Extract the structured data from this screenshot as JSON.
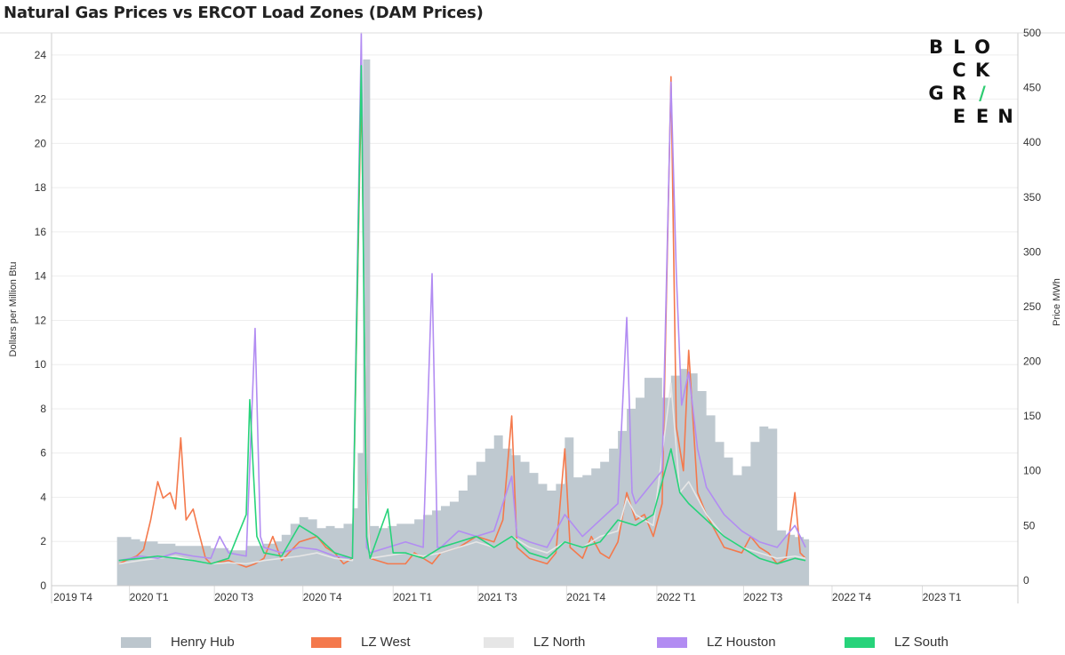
{
  "title": "Natural Gas Prices vs ERCOT Load Zones (DAM Prices)",
  "logo": {
    "rows": [
      [
        "B",
        "L",
        "O",
        ""
      ],
      [
        "",
        "C",
        "K",
        ""
      ],
      [
        "G",
        "R",
        "/",
        ""
      ],
      [
        "",
        "E",
        "E",
        "N"
      ]
    ],
    "accent": "#2ecc71"
  },
  "colors": {
    "henry_hub": "#bcc6cd",
    "lz_west": "#f4794c",
    "lz_north": "#e6e6e6",
    "lz_houston": "#b28cf2",
    "lz_south": "#27d37a"
  },
  "legend": [
    {
      "label": "Henry Hub",
      "color": "#bcc6cd"
    },
    {
      "label": "LZ West",
      "color": "#f4794c"
    },
    {
      "label": "LZ North",
      "color": "#e6e6e6"
    },
    {
      "label": "LZ Houston",
      "color": "#b28cf2"
    },
    {
      "label": "LZ South",
      "color": "#27d37a"
    }
  ],
  "chart_data": {
    "type": "area",
    "title": "Natural Gas Prices vs ERCOT Load Zones (DAM Prices)",
    "xlabel": "",
    "ylabel": "Dollars per Million Btu",
    "y2label": "Price MWh",
    "x_ticks": [
      "2019 T4",
      "2020 T1",
      "2020 T3",
      "2020 T4",
      "2021 T1",
      "2021 T3",
      "2021 T4",
      "2022 T1",
      "2022 T3",
      "2022 T4",
      "2023 T1"
    ],
    "y_ticks": [
      0,
      2,
      4,
      6,
      8,
      10,
      12,
      14,
      16,
      18,
      20,
      22,
      24
    ],
    "y2_ticks": [
      0,
      50,
      100,
      150,
      200,
      250,
      300,
      350,
      400,
      450,
      500
    ],
    "ylim": [
      0,
      25
    ],
    "y2lim": [
      -5,
      500
    ],
    "grid": true,
    "legend_position": "bottom",
    "x_unit": "months since 2019-10",
    "series": [
      {
        "name": "Henry Hub",
        "axis": "left",
        "style": "step-area",
        "points": [
          [
            1.7,
            2.2
          ],
          [
            2.5,
            2.1
          ],
          [
            3,
            2.0
          ],
          [
            4,
            1.9
          ],
          [
            5,
            1.8
          ],
          [
            6,
            1.8
          ],
          [
            7,
            1.7
          ],
          [
            8,
            1.6
          ],
          [
            9,
            1.8
          ],
          [
            10,
            1.9
          ],
          [
            10.6,
            2.0
          ],
          [
            11,
            2.3
          ],
          [
            11.5,
            2.8
          ],
          [
            12,
            3.1
          ],
          [
            12.5,
            3.0
          ],
          [
            13,
            2.6
          ],
          [
            13.5,
            2.7
          ],
          [
            14,
            2.6
          ],
          [
            14.5,
            2.8
          ],
          [
            15,
            3.5
          ],
          [
            15.3,
            6.0
          ],
          [
            15.6,
            23.8
          ],
          [
            16,
            2.7
          ],
          [
            16.5,
            2.6
          ],
          [
            17,
            2.7
          ],
          [
            17.5,
            2.8
          ],
          [
            18,
            2.8
          ],
          [
            18.5,
            3.0
          ],
          [
            19,
            3.2
          ],
          [
            19.5,
            3.4
          ],
          [
            20,
            3.6
          ],
          [
            20.5,
            3.8
          ],
          [
            21,
            4.3
          ],
          [
            21.5,
            5.0
          ],
          [
            22,
            5.6
          ],
          [
            22.5,
            6.2
          ],
          [
            23,
            6.8
          ],
          [
            23.5,
            6.2
          ],
          [
            24,
            5.9
          ],
          [
            24.5,
            5.6
          ],
          [
            25,
            5.1
          ],
          [
            25.5,
            4.6
          ],
          [
            26,
            4.3
          ],
          [
            26.5,
            4.6
          ],
          [
            27,
            6.7
          ],
          [
            27.5,
            4.9
          ],
          [
            28,
            5.0
          ],
          [
            28.5,
            5.3
          ],
          [
            29,
            5.6
          ],
          [
            29.5,
            6.2
          ],
          [
            30,
            7.0
          ],
          [
            30.5,
            8.0
          ],
          [
            31,
            8.5
          ],
          [
            31.5,
            9.4
          ],
          [
            32,
            9.4
          ],
          [
            32.5,
            8.5
          ],
          [
            33,
            9.5
          ],
          [
            33.5,
            9.8
          ],
          [
            34,
            9.6
          ],
          [
            34.5,
            8.8
          ],
          [
            35,
            7.7
          ],
          [
            35.5,
            6.5
          ],
          [
            36,
            5.8
          ],
          [
            36.5,
            5.0
          ],
          [
            37,
            5.4
          ],
          [
            37.5,
            6.5
          ],
          [
            38,
            7.2
          ],
          [
            38.5,
            7.1
          ],
          [
            39,
            2.5
          ],
          [
            39.5,
            2.3
          ],
          [
            40,
            2.2
          ],
          [
            40.5,
            2.1
          ]
        ]
      },
      {
        "name": "LZ West",
        "axis": "right",
        "style": "line",
        "points": [
          [
            1.8,
            15
          ],
          [
            2.2,
            18
          ],
          [
            2.8,
            22
          ],
          [
            3.2,
            28
          ],
          [
            3.6,
            55
          ],
          [
            4,
            90
          ],
          [
            4.3,
            75
          ],
          [
            4.7,
            80
          ],
          [
            5,
            65
          ],
          [
            5.3,
            130
          ],
          [
            5.6,
            55
          ],
          [
            6,
            65
          ],
          [
            6.3,
            45
          ],
          [
            6.7,
            20
          ],
          [
            7,
            15
          ],
          [
            8,
            18
          ],
          [
            9,
            12
          ],
          [
            9.5,
            15
          ],
          [
            10,
            20
          ],
          [
            10.5,
            40
          ],
          [
            11,
            18
          ],
          [
            12,
            35
          ],
          [
            13,
            40
          ],
          [
            13.5,
            30
          ],
          [
            14,
            25
          ],
          [
            14.5,
            15
          ],
          [
            15,
            20
          ],
          [
            15.5,
            450
          ],
          [
            15.8,
            100
          ],
          [
            16,
            20
          ],
          [
            17,
            15
          ],
          [
            18,
            15
          ],
          [
            18.5,
            25
          ],
          [
            19,
            20
          ],
          [
            19.5,
            15
          ],
          [
            20,
            25
          ],
          [
            21,
            30
          ],
          [
            22,
            40
          ],
          [
            23,
            35
          ],
          [
            23.5,
            55
          ],
          [
            24,
            150
          ],
          [
            24.3,
            30
          ],
          [
            25,
            20
          ],
          [
            26,
            15
          ],
          [
            26.5,
            25
          ],
          [
            27,
            120
          ],
          [
            27.3,
            30
          ],
          [
            28,
            20
          ],
          [
            28.5,
            40
          ],
          [
            29,
            25
          ],
          [
            29.5,
            20
          ],
          [
            30,
            35
          ],
          [
            30.5,
            80
          ],
          [
            31,
            55
          ],
          [
            31.5,
            60
          ],
          [
            32,
            40
          ],
          [
            32.5,
            70
          ],
          [
            33,
            460
          ],
          [
            33.3,
            140
          ],
          [
            33.7,
            100
          ],
          [
            34,
            210
          ],
          [
            34.5,
            80
          ],
          [
            35,
            60
          ],
          [
            35.5,
            45
          ],
          [
            36,
            30
          ],
          [
            37,
            25
          ],
          [
            37.5,
            40
          ],
          [
            38,
            30
          ],
          [
            38.5,
            25
          ],
          [
            39,
            15
          ],
          [
            39.5,
            20
          ],
          [
            40,
            80
          ],
          [
            40.3,
            25
          ],
          [
            40.6,
            20
          ]
        ]
      },
      {
        "name": "LZ North",
        "axis": "right",
        "style": "line",
        "points": [
          [
            1.8,
            15
          ],
          [
            3,
            18
          ],
          [
            4,
            20
          ],
          [
            5,
            22
          ],
          [
            6,
            18
          ],
          [
            7,
            15
          ],
          [
            8,
            16
          ],
          [
            9,
            15
          ],
          [
            10,
            18
          ],
          [
            11,
            20
          ],
          [
            12,
            22
          ],
          [
            13,
            25
          ],
          [
            14,
            20
          ],
          [
            15,
            18
          ],
          [
            15.5,
            480
          ],
          [
            15.8,
            90
          ],
          [
            16,
            20
          ],
          [
            18,
            25
          ],
          [
            19,
            22
          ],
          [
            20,
            25
          ],
          [
            21,
            30
          ],
          [
            22,
            35
          ],
          [
            23,
            30
          ],
          [
            24,
            40
          ],
          [
            25,
            30
          ],
          [
            26,
            25
          ],
          [
            27,
            35
          ],
          [
            28,
            30
          ],
          [
            29,
            40
          ],
          [
            30,
            45
          ],
          [
            30.5,
            75
          ],
          [
            31,
            60
          ],
          [
            32,
            50
          ],
          [
            33,
            180
          ],
          [
            33.5,
            80
          ],
          [
            34,
            90
          ],
          [
            35,
            60
          ],
          [
            36,
            40
          ],
          [
            37,
            30
          ],
          [
            38,
            25
          ],
          [
            39,
            20
          ],
          [
            40,
            22
          ],
          [
            40.6,
            20
          ]
        ]
      },
      {
        "name": "LZ Houston",
        "axis": "right",
        "style": "line",
        "points": [
          [
            1.8,
            18
          ],
          [
            2.5,
            20
          ],
          [
            3,
            22
          ],
          [
            4,
            20
          ],
          [
            5,
            25
          ],
          [
            6,
            22
          ],
          [
            7,
            20
          ],
          [
            7.5,
            40
          ],
          [
            8,
            25
          ],
          [
            9,
            22
          ],
          [
            9.5,
            230
          ],
          [
            9.8,
            40
          ],
          [
            10,
            30
          ],
          [
            11,
            25
          ],
          [
            12,
            30
          ],
          [
            13,
            28
          ],
          [
            14,
            22
          ],
          [
            15,
            20
          ],
          [
            15.5,
            500
          ],
          [
            15.8,
            30
          ],
          [
            16,
            25
          ],
          [
            17,
            30
          ],
          [
            18,
            35
          ],
          [
            19,
            30
          ],
          [
            19.5,
            280
          ],
          [
            19.8,
            30
          ],
          [
            20,
            30
          ],
          [
            21,
            45
          ],
          [
            22,
            40
          ],
          [
            23,
            45
          ],
          [
            24,
            95
          ],
          [
            24.3,
            40
          ],
          [
            25,
            35
          ],
          [
            26,
            30
          ],
          [
            27,
            60
          ],
          [
            28,
            40
          ],
          [
            29,
            55
          ],
          [
            30,
            70
          ],
          [
            30.5,
            240
          ],
          [
            30.8,
            80
          ],
          [
            31,
            70
          ],
          [
            32,
            90
          ],
          [
            32.5,
            100
          ],
          [
            33,
            455
          ],
          [
            33.3,
            280
          ],
          [
            33.6,
            160
          ],
          [
            34,
            190
          ],
          [
            34.5,
            120
          ],
          [
            35,
            85
          ],
          [
            36,
            60
          ],
          [
            37,
            45
          ],
          [
            38,
            35
          ],
          [
            39,
            30
          ],
          [
            40,
            50
          ],
          [
            40.6,
            30
          ]
        ]
      },
      {
        "name": "LZ South",
        "axis": "right",
        "style": "line",
        "points": [
          [
            1.8,
            18
          ],
          [
            3,
            20
          ],
          [
            4,
            22
          ],
          [
            5,
            20
          ],
          [
            6,
            18
          ],
          [
            7,
            15
          ],
          [
            8,
            20
          ],
          [
            9,
            60
          ],
          [
            9.2,
            165
          ],
          [
            9.4,
            100
          ],
          [
            9.6,
            40
          ],
          [
            10,
            25
          ],
          [
            11,
            22
          ],
          [
            12,
            50
          ],
          [
            13,
            40
          ],
          [
            14,
            25
          ],
          [
            15,
            20
          ],
          [
            15.5,
            470
          ],
          [
            15.8,
            40
          ],
          [
            16,
            20
          ],
          [
            17,
            65
          ],
          [
            17.3,
            25
          ],
          [
            18,
            25
          ],
          [
            19,
            20
          ],
          [
            20,
            30
          ],
          [
            21,
            35
          ],
          [
            22,
            40
          ],
          [
            23,
            30
          ],
          [
            24,
            40
          ],
          [
            25,
            25
          ],
          [
            26,
            20
          ],
          [
            27,
            35
          ],
          [
            28,
            30
          ],
          [
            29,
            35
          ],
          [
            30,
            55
          ],
          [
            31,
            50
          ],
          [
            32,
            60
          ],
          [
            33,
            120
          ],
          [
            33.5,
            80
          ],
          [
            34,
            70
          ],
          [
            35,
            55
          ],
          [
            36,
            40
          ],
          [
            37,
            30
          ],
          [
            38,
            20
          ],
          [
            39,
            15
          ],
          [
            40,
            20
          ],
          [
            40.6,
            18
          ]
        ]
      }
    ]
  }
}
